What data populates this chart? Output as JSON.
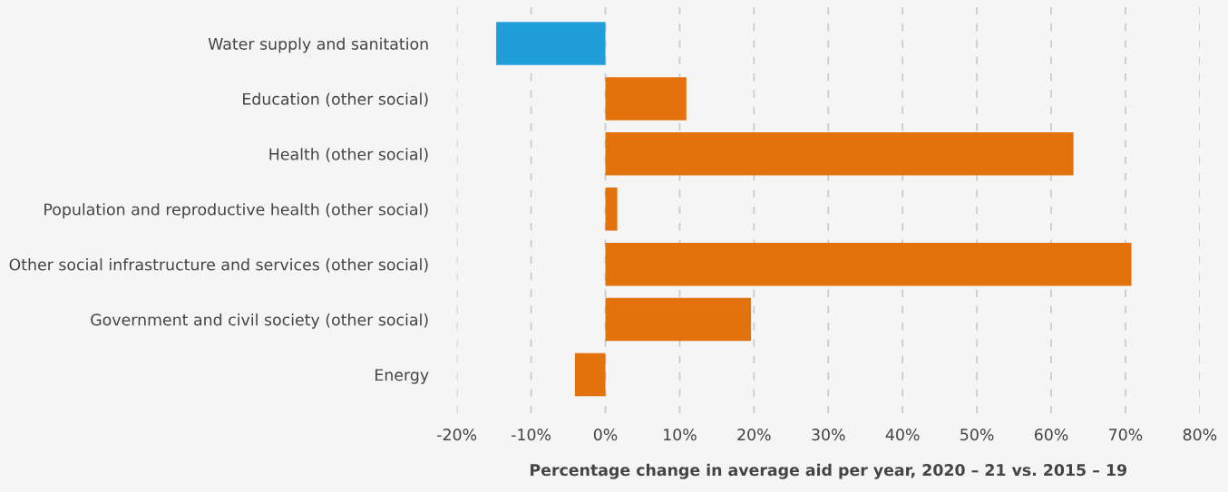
{
  "chart_data": {
    "type": "bar",
    "orientation": "horizontal",
    "xlabel": "Percentage change in average aid per year, 2020 – 21 vs. 2015 – 19",
    "categories": [
      "Water supply and sanitation",
      "Education (other social)",
      "Health (other social)",
      "Population and reproductive health (other social)",
      "Other social infrastructure and services (other social)",
      "Government and civil society (other social)",
      "Energy"
    ],
    "values": [
      -14.7,
      10.9,
      63.0,
      1.6,
      70.8,
      19.6,
      -4.1
    ],
    "colors": [
      "#1f9ed9",
      "#e3720c",
      "#e3720c",
      "#e3720c",
      "#e3720c",
      "#e3720c",
      "#e3720c"
    ],
    "xlim": [
      -20,
      80
    ],
    "xticks": [
      {
        "value": -20,
        "label": "-20%"
      },
      {
        "value": -10,
        "label": "-10%"
      },
      {
        "value": 0,
        "label": "0%"
      },
      {
        "value": 10,
        "label": "10%"
      },
      {
        "value": 20,
        "label": "20%"
      },
      {
        "value": 30,
        "label": "30%"
      },
      {
        "value": 40,
        "label": "40%"
      },
      {
        "value": 50,
        "label": "50%"
      },
      {
        "value": 60,
        "label": "60%"
      },
      {
        "value": 70,
        "label": "70%"
      },
      {
        "value": 80,
        "label": "80%"
      }
    ],
    "grid": "x",
    "line_style": "dashed"
  }
}
